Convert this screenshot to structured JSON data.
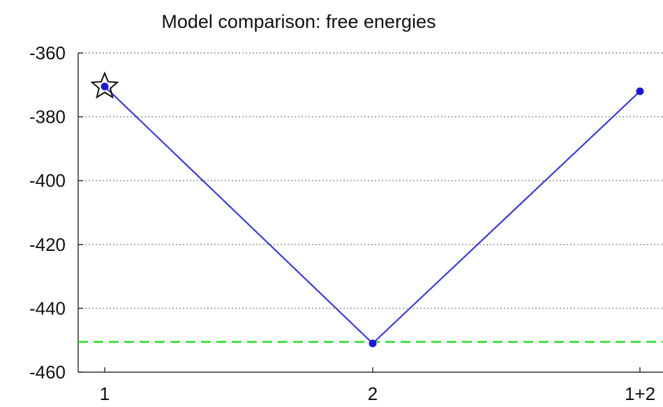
{
  "chart_data": {
    "type": "line",
    "title": "Model comparison: free energies",
    "xlabel": "",
    "ylabel": "",
    "categories": [
      "1",
      "2",
      "1+2"
    ],
    "series": [
      {
        "values": [
          -370.5,
          -451.0,
          -372.0
        ]
      }
    ],
    "best_model_marker": {
      "category": "1",
      "symbol": "star"
    },
    "reference_line": {
      "y": -450.5,
      "style": "dashed"
    },
    "ylim": [
      -460,
      -360
    ],
    "yticks": [
      -360,
      -380,
      -400,
      -420,
      -440,
      -460
    ],
    "ytick_labels": [
      "-360",
      "-380",
      "-400",
      "-420",
      "-440",
      "-460"
    ],
    "grid": {
      "horizontal": true,
      "vertical": false,
      "style": "dotted"
    },
    "colors": {
      "series": "#3b3bd6",
      "marker": "#1a1ad0",
      "reference_line": "#22dd22",
      "grid": "#8c8c8c",
      "axis": "#333333",
      "star": "#111111"
    }
  }
}
